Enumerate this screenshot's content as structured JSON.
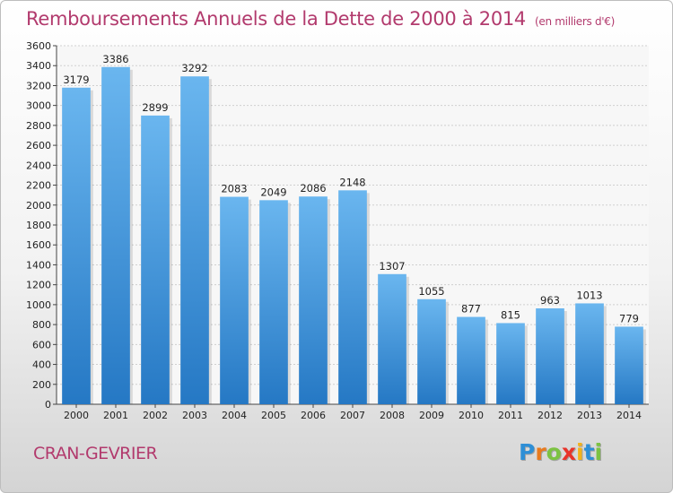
{
  "title": "Remboursements Annuels de la Dette de 2000 à 2014",
  "title_unit": "(en milliers d'€)",
  "city": "CRAN-GEVRIER",
  "logo": {
    "letters": [
      "P",
      "r",
      "o",
      "x",
      "i",
      "t",
      "i"
    ],
    "colors": [
      "#2e8fd6",
      "#e87a1e",
      "#7cc242",
      "#e8332a",
      "#f2b21b",
      "#2e8fd6",
      "#7cc242"
    ]
  },
  "colors": {
    "bar_light": "#6ab6ef",
    "bar_dark": "#2578c4",
    "title": "#b23a6d"
  },
  "chart_data": {
    "type": "bar",
    "categories": [
      "2000",
      "2001",
      "2002",
      "2003",
      "2004",
      "2005",
      "2006",
      "2007",
      "2008",
      "2009",
      "2010",
      "2011",
      "2012",
      "2013",
      "2014"
    ],
    "values": [
      3179,
      3386,
      2899,
      3292,
      2083,
      2049,
      2086,
      2148,
      1307,
      1055,
      877,
      815,
      963,
      1013,
      779
    ],
    "ylim": [
      0,
      3600
    ],
    "yticks": [
      0,
      200,
      400,
      600,
      800,
      1000,
      1200,
      1400,
      1600,
      1800,
      2000,
      2200,
      2400,
      2600,
      2800,
      3000,
      3200,
      3400,
      3600
    ],
    "grid": true,
    "data_labels": true,
    "xlabel": "",
    "ylabel": ""
  }
}
